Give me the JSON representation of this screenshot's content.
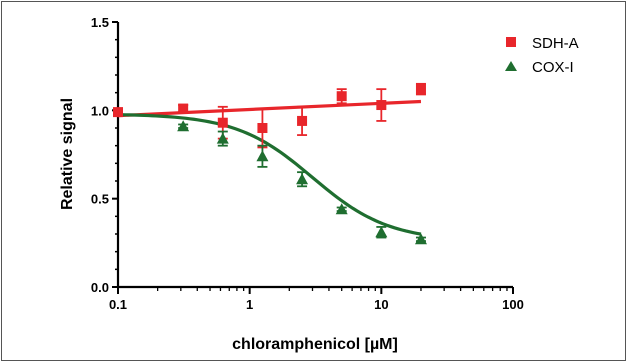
{
  "chart_data": {
    "type": "scatter",
    "title": "",
    "xlabel": "chloramphenicol [µM]",
    "ylabel": "Relative signal",
    "x_scale": "log",
    "xlim": [
      0.1,
      100
    ],
    "ylim": [
      0.0,
      1.5
    ],
    "x_ticks": [
      "0.1",
      "1",
      "10",
      "100"
    ],
    "y_ticks": [
      "0.0",
      "0.5",
      "1.0",
      "1.5"
    ],
    "grid": false,
    "legend_position": "top-right",
    "series": [
      {
        "name": "SDH-A",
        "color": "#e8262b",
        "marker": "square",
        "points": [
          {
            "x": 0.1,
            "y": 0.99,
            "err": 0.02
          },
          {
            "x": 0.3125,
            "y": 1.01,
            "err": 0.02
          },
          {
            "x": 0.625,
            "y": 0.93,
            "err": 0.09
          },
          {
            "x": 1.25,
            "y": 0.9,
            "err": 0.11
          },
          {
            "x": 2.5,
            "y": 0.94,
            "err": 0.08
          },
          {
            "x": 5,
            "y": 1.08,
            "err": 0.04
          },
          {
            "x": 10,
            "y": 1.03,
            "err": 0.09
          },
          {
            "x": 20,
            "y": 1.12,
            "err": 0.03
          }
        ],
        "fit": {
          "type": "linear",
          "x_start": 0.1,
          "x_end": 20,
          "y_start": 0.97,
          "y_end": 1.05
        }
      },
      {
        "name": "COX-I",
        "color": "#1f6e30",
        "marker": "triangle",
        "points": [
          {
            "x": 0.3125,
            "y": 0.91,
            "err": 0.01
          },
          {
            "x": 0.625,
            "y": 0.84,
            "err": 0.04
          },
          {
            "x": 1.25,
            "y": 0.74,
            "err": 0.06
          },
          {
            "x": 2.5,
            "y": 0.61,
            "err": 0.04
          },
          {
            "x": 5,
            "y": 0.44,
            "err": 0.01
          },
          {
            "x": 10,
            "y": 0.31,
            "err": 0.03
          },
          {
            "x": 20,
            "y": 0.27,
            "err": 0.01
          }
        ],
        "fit": {
          "type": "sigmoid",
          "top": 0.98,
          "bottom": 0.26,
          "ec50": 3.0,
          "hill": 1.5
        }
      }
    ]
  }
}
